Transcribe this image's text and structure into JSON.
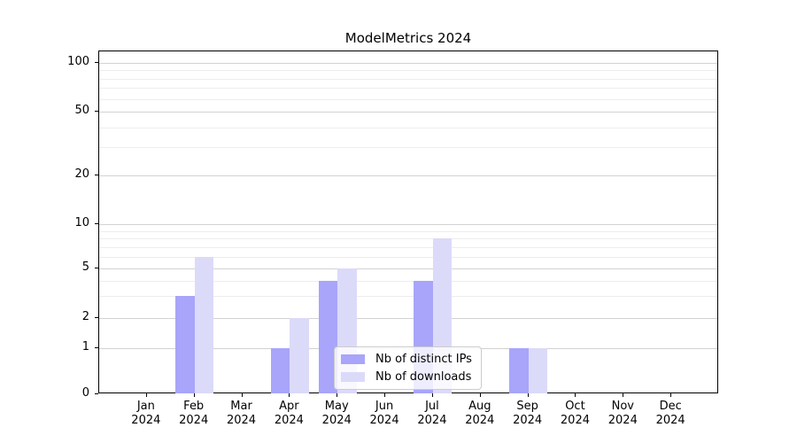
{
  "chart_data": {
    "type": "bar",
    "title": "ModelMetrics 2024",
    "categories": [
      {
        "month": "Jan",
        "year": "2024"
      },
      {
        "month": "Feb",
        "year": "2024"
      },
      {
        "month": "Mar",
        "year": "2024"
      },
      {
        "month": "Apr",
        "year": "2024"
      },
      {
        "month": "May",
        "year": "2024"
      },
      {
        "month": "Jun",
        "year": "2024"
      },
      {
        "month": "Jul",
        "year": "2024"
      },
      {
        "month": "Aug",
        "year": "2024"
      },
      {
        "month": "Sep",
        "year": "2024"
      },
      {
        "month": "Oct",
        "year": "2024"
      },
      {
        "month": "Nov",
        "year": "2024"
      },
      {
        "month": "Dec",
        "year": "2024"
      }
    ],
    "series": [
      {
        "name": "Nb of distinct IPs",
        "color": "#a8a5fa",
        "values": [
          0,
          3,
          0,
          1,
          4,
          0,
          4,
          0,
          1,
          0,
          0,
          0
        ]
      },
      {
        "name": "Nb of downloads",
        "color": "#dcdaf9",
        "values": [
          0,
          6,
          0,
          2,
          5,
          0,
          8,
          0,
          1,
          0,
          0,
          0
        ]
      }
    ],
    "xlabel": "",
    "ylabel": "",
    "y_axis": {
      "scale": "symlog",
      "ticks": [
        0,
        1,
        2,
        5,
        10,
        20,
        50,
        100
      ],
      "minor_gridlines": [
        3,
        4,
        6,
        7,
        8,
        9,
        30,
        40,
        60,
        70,
        80,
        90
      ],
      "ylim": [
        0,
        117
      ]
    },
    "grid": "both",
    "legend_position": "lower center",
    "colors": {
      "major_grid": "#d2d2d2",
      "minor_grid": "#ededed",
      "spine": "#000000",
      "background": "#ffffff"
    }
  }
}
